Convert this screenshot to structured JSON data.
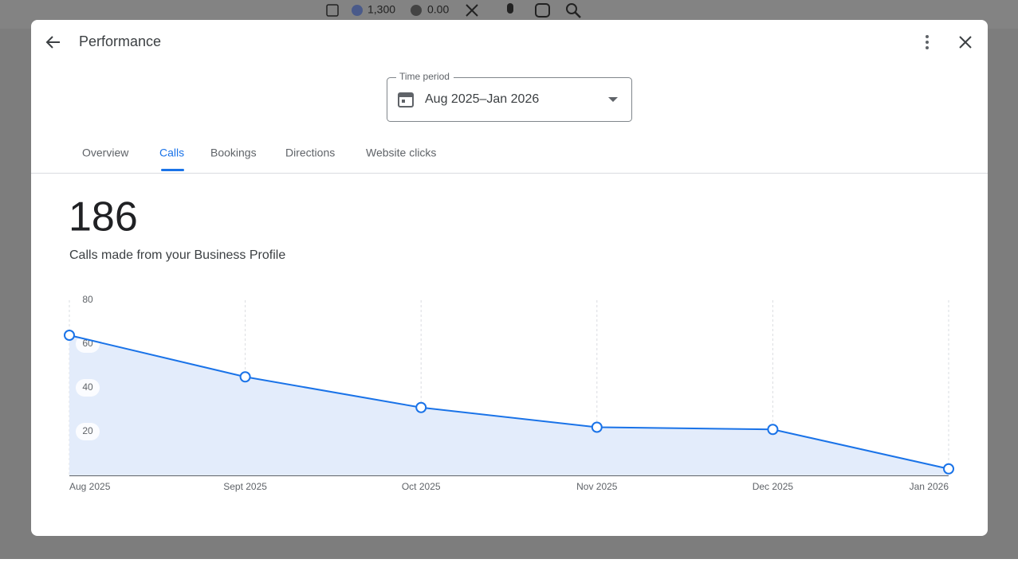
{
  "top_bar": {
    "points": "1,300",
    "balance": "0.00"
  },
  "header": {
    "title": "Performance"
  },
  "time_period": {
    "label": "Time period",
    "value": "Aug 2025–Jan 2026"
  },
  "tabs": [
    "Overview",
    "Calls",
    "Bookings",
    "Directions",
    "Website clicks"
  ],
  "summary": {
    "total": "186",
    "caption": "Calls made from your Business Profile"
  },
  "chart_data": {
    "type": "line",
    "categories": [
      "Aug 2025",
      "Sept 2025",
      "Oct 2025",
      "Nov 2025",
      "Dec 2025",
      "Jan 2026"
    ],
    "values": [
      64,
      45,
      31,
      22,
      21,
      3
    ],
    "color": "#1a73e8",
    "area_color": "#e3ecfb",
    "ylim": [
      0,
      80
    ],
    "yticks": [
      20,
      40,
      60,
      80
    ],
    "grid": true
  }
}
